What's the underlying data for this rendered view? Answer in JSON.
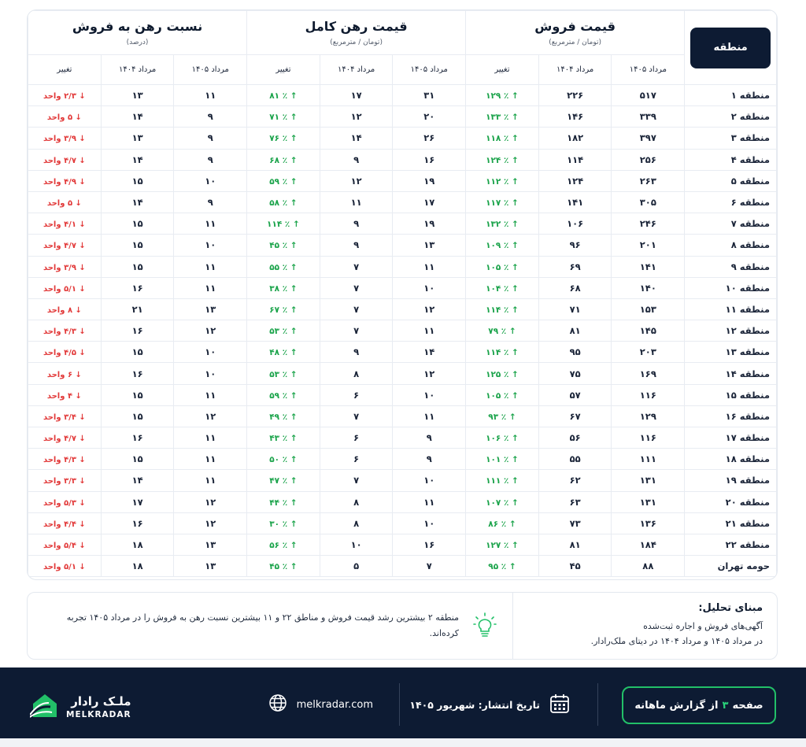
{
  "table": {
    "region_header": "منطقه",
    "groups": [
      {
        "title": "قیمت فروش",
        "subtitle": "(تومان / مترمربع)",
        "cols": [
          "مرداد ۱۴۰۵",
          "مرداد ۱۴۰۴",
          "تغییر"
        ]
      },
      {
        "title": "قیمت رهن کامل",
        "subtitle": "(تومان / مترمربع)",
        "cols": [
          "مرداد ۱۴۰۵",
          "مرداد ۱۴۰۴",
          "تغییر"
        ]
      },
      {
        "title": "نسبت رهن به فروش",
        "subtitle": "(درصد)",
        "cols": [
          "مرداد ۱۴۰۵",
          "مرداد ۱۴۰۴",
          "تغییر"
        ]
      }
    ],
    "rows": [
      {
        "region": "منطقه ۱",
        "s5": "۵۱۷",
        "s4": "۲۲۶",
        "sc": "٪ ۱۲۹",
        "m5": "۳۱",
        "m4": "۱۷",
        "mc": "٪ ۸۱",
        "r5": "۱۱",
        "r4": "۱۳",
        "rc": "۲/۳ واحد"
      },
      {
        "region": "منطقه ۲",
        "s5": "۳۳۹",
        "s4": "۱۴۶",
        "sc": "٪ ۱۳۳",
        "m5": "۲۰",
        "m4": "۱۲",
        "mc": "٪ ۷۱",
        "r5": "۹",
        "r4": "۱۴",
        "rc": "۵ واحد"
      },
      {
        "region": "منطقه ۳",
        "s5": "۳۹۷",
        "s4": "۱۸۲",
        "sc": "٪ ۱۱۸",
        "m5": "۲۶",
        "m4": "۱۴",
        "mc": "٪ ۷۶",
        "r5": "۹",
        "r4": "۱۳",
        "rc": "۳/۹ واحد"
      },
      {
        "region": "منطقه ۴",
        "s5": "۲۵۶",
        "s4": "۱۱۴",
        "sc": "٪ ۱۲۴",
        "m5": "۱۶",
        "m4": "۹",
        "mc": "٪ ۶۸",
        "r5": "۹",
        "r4": "۱۴",
        "rc": "۴/۷ واحد"
      },
      {
        "region": "منطقه ۵",
        "s5": "۲۶۳",
        "s4": "۱۲۴",
        "sc": "٪ ۱۱۲",
        "m5": "۱۹",
        "m4": "۱۲",
        "mc": "٪ ۵۹",
        "r5": "۱۰",
        "r4": "۱۵",
        "rc": "۴/۹ واحد"
      },
      {
        "region": "منطقه ۶",
        "s5": "۳۰۵",
        "s4": "۱۴۱",
        "sc": "٪ ۱۱۷",
        "m5": "۱۷",
        "m4": "۱۱",
        "mc": "٪ ۵۸",
        "r5": "۹",
        "r4": "۱۴",
        "rc": "۵ واحد"
      },
      {
        "region": "منطقه ۷",
        "s5": "۲۴۶",
        "s4": "۱۰۶",
        "sc": "٪ ۱۳۲",
        "m5": "۱۹",
        "m4": "۹",
        "mc": "٪ ۱۱۴",
        "r5": "۱۱",
        "r4": "۱۵",
        "rc": "۴/۱ واحد"
      },
      {
        "region": "منطقه ۸",
        "s5": "۲۰۱",
        "s4": "۹۶",
        "sc": "٪ ۱۰۹",
        "m5": "۱۳",
        "m4": "۹",
        "mc": "٪ ۴۵",
        "r5": "۱۰",
        "r4": "۱۵",
        "rc": "۴/۷ واحد"
      },
      {
        "region": "منطقه ۹",
        "s5": "۱۴۱",
        "s4": "۶۹",
        "sc": "٪ ۱۰۵",
        "m5": "۱۱",
        "m4": "۷",
        "mc": "٪ ۵۵",
        "r5": "۱۱",
        "r4": "۱۵",
        "rc": "۳/۹ واحد"
      },
      {
        "region": "منطقه ۱۰",
        "s5": "۱۴۰",
        "s4": "۶۸",
        "sc": "٪ ۱۰۴",
        "m5": "۱۰",
        "m4": "۷",
        "mc": "٪ ۳۸",
        "r5": "۱۱",
        "r4": "۱۶",
        "rc": "۵/۱ واحد"
      },
      {
        "region": "منطقه ۱۱",
        "s5": "۱۵۳",
        "s4": "۷۱",
        "sc": "٪ ۱۱۴",
        "m5": "۱۲",
        "m4": "۷",
        "mc": "٪ ۶۷",
        "r5": "۱۳",
        "r4": "۲۱",
        "rc": "۸ واحد"
      },
      {
        "region": "منطقه ۱۲",
        "s5": "۱۴۵",
        "s4": "۸۱",
        "sc": "٪ ۷۹",
        "m5": "۱۱",
        "m4": "۷",
        "mc": "٪ ۵۳",
        "r5": "۱۲",
        "r4": "۱۶",
        "rc": "۴/۳ واحد"
      },
      {
        "region": "منطقه ۱۳",
        "s5": "۲۰۳",
        "s4": "۹۵",
        "sc": "٪ ۱۱۴",
        "m5": "۱۴",
        "m4": "۹",
        "mc": "٪ ۴۸",
        "r5": "۱۰",
        "r4": "۱۵",
        "rc": "۴/۵ واحد"
      },
      {
        "region": "منطقه ۱۴",
        "s5": "۱۶۹",
        "s4": "۷۵",
        "sc": "٪ ۱۲۵",
        "m5": "۱۲",
        "m4": "۸",
        "mc": "٪ ۵۳",
        "r5": "۱۰",
        "r4": "۱۶",
        "rc": "۶ واحد"
      },
      {
        "region": "منطقه ۱۵",
        "s5": "۱۱۶",
        "s4": "۵۷",
        "sc": "٪ ۱۰۵",
        "m5": "۱۰",
        "m4": "۶",
        "mc": "٪ ۵۹",
        "r5": "۱۱",
        "r4": "۱۵",
        "rc": "۴ واحد"
      },
      {
        "region": "منطقه ۱۶",
        "s5": "۱۲۹",
        "s4": "۶۷",
        "sc": "٪ ۹۳",
        "m5": "۱۱",
        "m4": "۷",
        "mc": "٪ ۴۹",
        "r5": "۱۲",
        "r4": "۱۵",
        "rc": "۳/۴ واحد"
      },
      {
        "region": "منطقه ۱۷",
        "s5": "۱۱۶",
        "s4": "۵۶",
        "sc": "٪ ۱۰۶",
        "m5": "۹",
        "m4": "۶",
        "mc": "٪ ۴۳",
        "r5": "۱۱",
        "r4": "۱۶",
        "rc": "۴/۷ واحد"
      },
      {
        "region": "منطقه ۱۸",
        "s5": "۱۱۱",
        "s4": "۵۵",
        "sc": "٪ ۱۰۱",
        "m5": "۹",
        "m4": "۶",
        "mc": "٪ ۵۰",
        "r5": "۱۱",
        "r4": "۱۵",
        "rc": "۴/۳ واحد"
      },
      {
        "region": "منطقه ۱۹",
        "s5": "۱۳۱",
        "s4": "۶۲",
        "sc": "٪ ۱۱۱",
        "m5": "۱۰",
        "m4": "۷",
        "mc": "٪ ۴۷",
        "r5": "۱۱",
        "r4": "۱۴",
        "rc": "۳/۳ واحد"
      },
      {
        "region": "منطقه ۲۰",
        "s5": "۱۳۱",
        "s4": "۶۳",
        "sc": "٪ ۱۰۷",
        "m5": "۱۱",
        "m4": "۸",
        "mc": "٪ ۴۴",
        "r5": "۱۲",
        "r4": "۱۷",
        "rc": "۵/۳ واحد"
      },
      {
        "region": "منطقه ۲۱",
        "s5": "۱۳۶",
        "s4": "۷۳",
        "sc": "٪ ۸۶",
        "m5": "۱۰",
        "m4": "۸",
        "mc": "٪ ۳۰",
        "r5": "۱۲",
        "r4": "۱۶",
        "rc": "۴/۴ واحد"
      },
      {
        "region": "منطقه ۲۲",
        "s5": "۱۸۴",
        "s4": "۸۱",
        "sc": "٪ ۱۲۷",
        "m5": "۱۶",
        "m4": "۱۰",
        "mc": "٪ ۵۶",
        "r5": "۱۳",
        "r4": "۱۸",
        "rc": "۵/۴ واحد"
      },
      {
        "region": "حومه تهران",
        "s5": "۸۸",
        "s4": "۴۵",
        "sc": "٪ ۹۵",
        "m5": "۷",
        "m4": "۵",
        "mc": "٪ ۴۵",
        "r5": "۱۳",
        "r4": "۱۸",
        "rc": "۵/۱ واحد"
      }
    ]
  },
  "analysis": {
    "title": "مبنای تحلیل:",
    "line1": "آگهی‌های فروش و اجاره ثبت‌شده",
    "line2": "در مرداد ۱۴۰۵ و مرداد ۱۴۰۴ در دیتای ملک‌رادار.",
    "note": "منطقه ۲ بیشترین رشد قیمت فروش و مناطق ۲۲ و ۱۱ بیشترین نسبت رهن به فروش را در مرداد ۱۴۰۵ تجربه کرده‌اند."
  },
  "footer": {
    "page_prefix": "صفحه",
    "page_number": "۳",
    "page_suffix": "از گزارش ماهانه",
    "pub_date": "تاریخ انتشار: شهریور ۱۴۰۵",
    "website": "melkradar.com",
    "brand_fa": "ملـک رادار",
    "brand_en": "MELKRADAR"
  },
  "colors": {
    "navy": "#0d1b33",
    "up": "#1aa34a",
    "down": "#e23a3a",
    "accent": "#22c068"
  },
  "icons": {
    "up": "arrow-up-icon",
    "down": "arrow-down-icon",
    "bulb": "lightbulb-icon",
    "calendar": "calendar-icon",
    "globe": "globe-icon",
    "logo": "melkradar-logo-icon"
  }
}
